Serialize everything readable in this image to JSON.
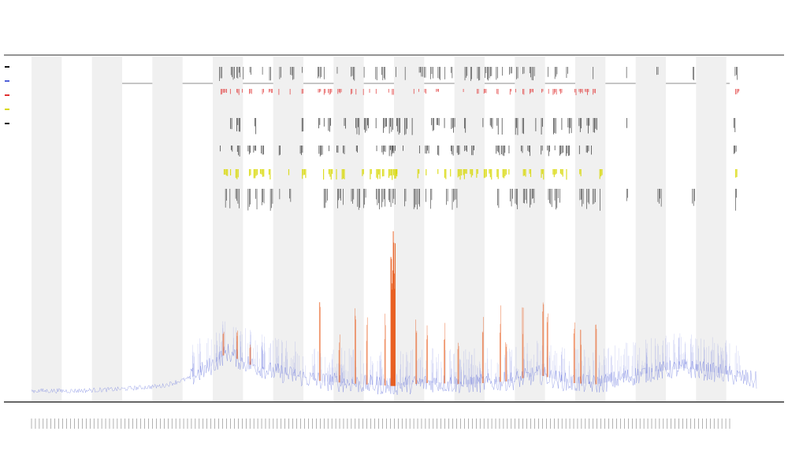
{
  "chart_data": {
    "type": "line",
    "title": "",
    "subtitle_lines": [],
    "xlabel": "",
    "ylabel": "",
    "legend_position": "top-left",
    "legend": [],
    "x_tick_count": 180,
    "ylim": [
      0,
      100
    ],
    "grid": false,
    "band_count": 12,
    "colors": {
      "baseline_series": "#5060d8",
      "spike_series": "#e85a1a",
      "event_black": "#111111",
      "event_yellow": "#d8d800",
      "event_red": "#e03030",
      "band": "#f0f0f0",
      "axis": "#333333"
    },
    "baseline_profile": [
      [
        0,
        4
      ],
      [
        6,
        4
      ],
      [
        12,
        5
      ],
      [
        18,
        7
      ],
      [
        22,
        12
      ],
      [
        25,
        20
      ],
      [
        27,
        28
      ],
      [
        29,
        22
      ],
      [
        33,
        16
      ],
      [
        40,
        10
      ],
      [
        46,
        8
      ],
      [
        50,
        7
      ],
      [
        55,
        9
      ],
      [
        60,
        8
      ],
      [
        66,
        10
      ],
      [
        70,
        14
      ],
      [
        74,
        9
      ],
      [
        78,
        8
      ],
      [
        82,
        12
      ],
      [
        86,
        16
      ],
      [
        90,
        18
      ],
      [
        95,
        15
      ],
      [
        100,
        10
      ]
    ],
    "spike_positions": [
      26.5,
      28.4,
      30.2,
      39.8,
      42.5,
      44.7,
      46.3,
      48.8,
      49.9,
      53.1,
      54.6,
      57.0,
      58.9,
      62.3,
      64.7,
      65.5,
      67.8,
      70.6,
      71.2,
      74.9,
      75.8,
      77.9
    ],
    "spike_heights": [
      20,
      18,
      16,
      55,
      30,
      48,
      42,
      45,
      96,
      40,
      38,
      42,
      36,
      46,
      50,
      30,
      44,
      48,
      40,
      38,
      36,
      44
    ],
    "event_row_columns": [
      26.0,
      26.6,
      27.4,
      28.3,
      29.1,
      30.0,
      30.8,
      31.7,
      32.8,
      34.1,
      35.6,
      37.2,
      39.5,
      40.3,
      41.1,
      42.2,
      43.0,
      44.1,
      44.9,
      45.8,
      46.6,
      47.5,
      48.4,
      49.2,
      49.8,
      50.3,
      51.4,
      52.6,
      53.4,
      54.3,
      55.2,
      56.0,
      57.1,
      57.9,
      58.8,
      59.7,
      60.6,
      61.5,
      62.4,
      63.3,
      64.2,
      65.0,
      65.9,
      66.8,
      67.7,
      68.6,
      69.5,
      70.3,
      71.2,
      72.1,
      73.0,
      73.9,
      74.8,
      75.6,
      76.5,
      77.4,
      78.3,
      82.0,
      86.4,
      91.2,
      97.0
    ]
  }
}
